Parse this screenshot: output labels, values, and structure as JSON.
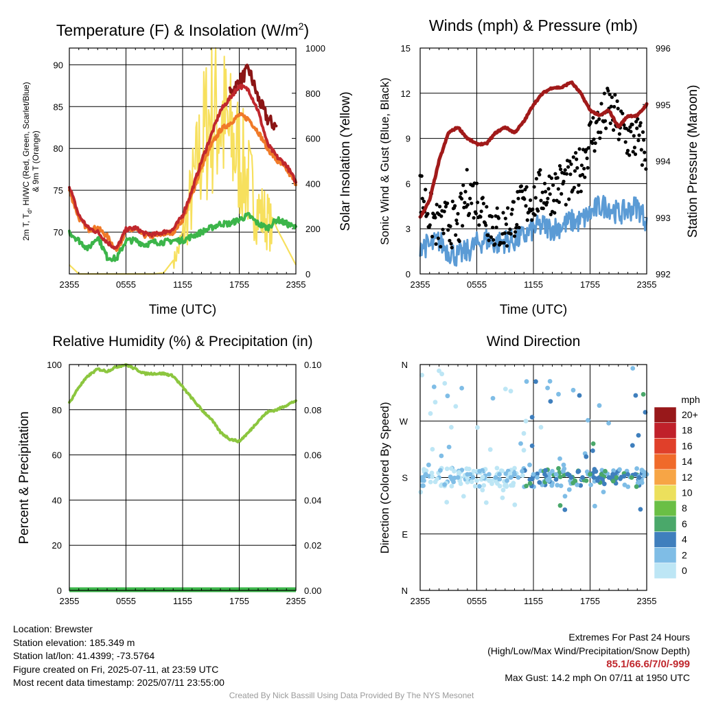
{
  "time_ticks": [
    "2355",
    "0555",
    "1155",
    "1755",
    "2355"
  ],
  "chart_data": [
    {
      "type": "line",
      "title": "Temperature (F) & Insolation (W/m²)",
      "xlabel": "Time (UTC)",
      "ylabel": "2m T, Td, HI/WC (Red, Green, Scarlet/Blue) & 9m T (Orange)",
      "ylabel_lines": [
        "2m T, T",
        "d",
        ", HI/WC (Red, Green, Scarlet/Blue)",
        "& 9m T (Orange)"
      ],
      "y2label": "Solar Insolation (Yellow)",
      "ylim": [
        65,
        92
      ],
      "yticks": [
        70,
        75,
        80,
        85,
        90
      ],
      "y2lim": [
        0,
        1000
      ],
      "y2ticks": [
        0,
        200,
        400,
        600,
        800,
        1000
      ],
      "x_hours": [
        0,
        1,
        2,
        3,
        4,
        5,
        6,
        7,
        8,
        9,
        10,
        11,
        12,
        13,
        14,
        15,
        16,
        17,
        18,
        19,
        20,
        21,
        22,
        23,
        24
      ],
      "series": [
        {
          "key": "temp2m",
          "color": "#c0272d",
          "values": [
            75.5,
            72.0,
            70.5,
            70.0,
            68.8,
            68.0,
            70.3,
            70.5,
            69.8,
            69.7,
            70.0,
            70.3,
            72.0,
            75.0,
            78.5,
            81.5,
            84.5,
            86.0,
            87.5,
            87.0,
            84.5,
            80.5,
            79.0,
            78.0,
            76.0
          ]
        },
        {
          "key": "temp9m",
          "color": "#f07a28",
          "values": [
            75.0,
            71.7,
            70.3,
            70.5,
            69.5,
            67.8,
            70.1,
            70.3,
            69.6,
            69.5,
            69.8,
            70.0,
            71.5,
            74.5,
            77.8,
            80.3,
            82.2,
            83.0,
            84.0,
            83.5,
            82.0,
            80.0,
            78.5,
            77.5,
            75.8
          ]
        },
        {
          "key": "heat_index",
          "color": "#8b1515",
          "values": [
            null,
            null,
            null,
            null,
            null,
            null,
            null,
            null,
            null,
            null,
            null,
            null,
            null,
            null,
            null,
            null,
            null,
            86.5,
            88.0,
            89.5,
            86.0,
            83.5,
            82.5,
            null,
            null
          ]
        },
        {
          "key": "dewpoint",
          "color": "#3cb54a",
          "values": [
            70.0,
            69.0,
            68.0,
            69.5,
            67.0,
            66.8,
            69.0,
            69.0,
            68.5,
            68.8,
            68.8,
            69.0,
            69.0,
            69.5,
            70.0,
            70.5,
            71.0,
            71.0,
            71.5,
            72.0,
            71.0,
            70.5,
            71.5,
            71.0,
            70.5
          ]
        },
        {
          "key": "insolation",
          "axis": "y2",
          "color": "#f7e05e",
          "values": [
            40,
            0,
            0,
            0,
            0,
            0,
            0,
            0,
            0,
            0,
            5,
            60,
            200,
            450,
            700,
            900,
            880,
            750,
            650,
            500,
            350,
            300,
            200,
            120,
            40
          ]
        }
      ]
    },
    {
      "type": "scatter",
      "title": "Winds (mph) & Pressure (mb)",
      "xlabel": "Time (UTC)",
      "ylabel": "Sonic Wind & Gust (Blue, Black)",
      "y2label": "Station Pressure (Maroon)",
      "ylim": [
        0,
        15
      ],
      "yticks": [
        0,
        3,
        6,
        9,
        12,
        15
      ],
      "y2lim": [
        992,
        996
      ],
      "y2ticks": [
        992,
        993,
        994,
        995,
        996
      ],
      "x_hours": [
        0,
        1,
        2,
        3,
        4,
        5,
        6,
        7,
        8,
        9,
        10,
        11,
        12,
        13,
        14,
        15,
        16,
        17,
        18,
        19,
        20,
        21,
        22,
        23,
        24
      ],
      "series": [
        {
          "key": "wind",
          "color": "#5b9bd5",
          "values": [
            2.0,
            1.8,
            2.2,
            1.5,
            1.2,
            1.5,
            2.0,
            2.3,
            2.0,
            2.2,
            2.2,
            2.5,
            3.0,
            3.2,
            3.0,
            3.2,
            3.5,
            3.5,
            4.0,
            4.5,
            4.5,
            4.0,
            4.2,
            4.5,
            3.5
          ]
        },
        {
          "key": "gust",
          "color": "#000000",
          "values": [
            5.5,
            4.0,
            3.0,
            3.5,
            3.0,
            5.5,
            5.0,
            4.0,
            3.0,
            3.0,
            4.0,
            4.5,
            5.0,
            5.5,
            5.5,
            6.0,
            6.0,
            7.0,
            9.0,
            10.0,
            11.0,
            10.0,
            9.0,
            9.0,
            8.0
          ]
        },
        {
          "key": "pressure",
          "axis": "y2",
          "color": "#a11a1a",
          "values": [
            993.0,
            993.3,
            994.0,
            994.5,
            994.6,
            994.4,
            994.3,
            994.3,
            994.5,
            994.6,
            994.5,
            994.7,
            995.0,
            995.2,
            995.3,
            995.3,
            995.4,
            995.2,
            994.9,
            994.8,
            994.9,
            994.6,
            994.8,
            994.8,
            995.0
          ]
        }
      ]
    },
    {
      "type": "line",
      "title": "Relative Humidity (%) & Precipitation (in)",
      "ylabel": "Percent & Precipitation",
      "ylim": [
        0,
        100
      ],
      "yticks": [
        0,
        20,
        40,
        60,
        80,
        100
      ],
      "y2lim": [
        0,
        0.1
      ],
      "y2ticks": [
        "0.00",
        "0.02",
        "0.04",
        "0.06",
        "0.08",
        "0.10"
      ],
      "x_hours": [
        0,
        1,
        2,
        3,
        4,
        5,
        6,
        7,
        8,
        9,
        10,
        11,
        12,
        13,
        14,
        15,
        16,
        17,
        18,
        19,
        20,
        21,
        22,
        23,
        24
      ],
      "series": [
        {
          "key": "rh",
          "color": "#8cc63f",
          "values": [
            83,
            90,
            95,
            98,
            97,
            99,
            100,
            98,
            96,
            96,
            96,
            95,
            90,
            85,
            80,
            76,
            70,
            67,
            66,
            70,
            75,
            79,
            80,
            82,
            84
          ]
        },
        {
          "key": "precip",
          "axis": "y2",
          "color": "#3cb54a",
          "values": [
            0,
            0,
            0,
            0,
            0,
            0,
            0,
            0,
            0,
            0,
            0,
            0,
            0,
            0,
            0,
            0,
            0,
            0,
            0,
            0,
            0,
            0,
            0,
            0,
            0
          ]
        }
      ]
    },
    {
      "type": "scatter",
      "title": "Wind Direction",
      "ylabel": "Direction (Colored By Speed)",
      "ylim": [
        0,
        360
      ],
      "ytick_labels": [
        "N",
        "E",
        "S",
        "W",
        "N"
      ],
      "colorbar": {
        "unit": "mph",
        "labels": [
          "0",
          "2",
          "4",
          "6",
          "8",
          "10",
          "12",
          "14",
          "16",
          "18",
          "20+"
        ],
        "colors": [
          "#bde6f5",
          "#7fbde6",
          "#3f7fbd",
          "#4aa86a",
          "#6abf45",
          "#ece05c",
          "#f7a545",
          "#f06a2a",
          "#e0402a",
          "#c0202a",
          "#98181a"
        ]
      },
      "points_hours": [
        0.2,
        0.4,
        0.6,
        0.9,
        1.3,
        1.6,
        2.0,
        2.3,
        2.6,
        2.9,
        3.3,
        3.6,
        4.0,
        4.3,
        4.6,
        5.0,
        5.3,
        5.6,
        6.0,
        6.3,
        6.6,
        7.0,
        7.3,
        7.6,
        8.0,
        8.4,
        8.8,
        9.2,
        9.6,
        10.0,
        10.4,
        10.8,
        11.2,
        11.6,
        12.0,
        12.4,
        12.8,
        13.2,
        13.6,
        14.0,
        14.4,
        14.8,
        15.2,
        15.6,
        16.0,
        16.4,
        16.8,
        17.2,
        17.6,
        18.0,
        18.4,
        18.8,
        19.2,
        19.6,
        20.0,
        20.4,
        20.8,
        21.2,
        21.6,
        22.0,
        22.4,
        22.8,
        23.2,
        23.6,
        24.0
      ],
      "points_dir": [
        180,
        175,
        185,
        200,
        225,
        300,
        350,
        345,
        330,
        310,
        260,
        190,
        180,
        170,
        150,
        185,
        185,
        180,
        175,
        190,
        160,
        140,
        185,
        170,
        180,
        185,
        160,
        175,
        180,
        185,
        180,
        190,
        270,
        200,
        185,
        180,
        260,
        185,
        175,
        190,
        185,
        210,
        200,
        185,
        180,
        175,
        190,
        180,
        175,
        185,
        180,
        175,
        185,
        190,
        180,
        185,
        180,
        178,
        182,
        185,
        180,
        185,
        180,
        190,
        185
      ],
      "points_spd": [
        3,
        2,
        2,
        2,
        1,
        1,
        1,
        1,
        1,
        2,
        1,
        1,
        2,
        1,
        1,
        2,
        2,
        2,
        1,
        2,
        1,
        1,
        2,
        1,
        3,
        2,
        1,
        2,
        3,
        3,
        2,
        3,
        1,
        2,
        3,
        3,
        1,
        4,
        3,
        2,
        3,
        2,
        3,
        4,
        5,
        6,
        4,
        5,
        6,
        7,
        5,
        4,
        6,
        7,
        5,
        4,
        6,
        5,
        4,
        5,
        6,
        4,
        4,
        3,
        3
      ]
    }
  ],
  "info_left": [
    "Location: Brewster",
    "Station elevation: 185.349 m",
    "Station lat/lon: 41.4399; -73.5764",
    "Figure created on Fri, 2025-07-11, at 23:59 UTC",
    "Most recent data timestamp: 2025/07/11 23:55:00"
  ],
  "info_right": {
    "heading": "Extremes For Past 24 Hours",
    "subheading": "(High/Low/Max Wind/Precipitation/Snow Depth)",
    "values": "85.1/66.6/7/0/-999",
    "max_gust": "Max Gust: 14.2 mph On 07/11 at 1950 UTC"
  },
  "credit": "Created By Nick Bassill Using Data Provided By The NYS Mesonet"
}
